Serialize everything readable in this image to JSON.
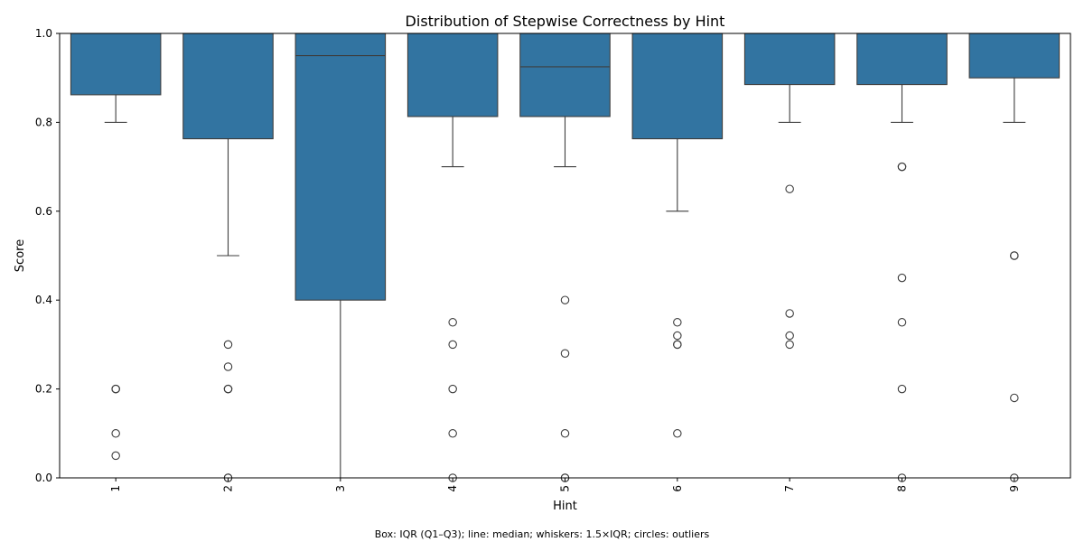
{
  "chart_data": {
    "type": "box",
    "title": "Distribution of Stepwise Correctness by Hint",
    "xlabel": "Hint",
    "ylabel": "Score",
    "ylim": [
      0,
      1.0
    ],
    "yticks": [
      "0.0",
      "0.2",
      "0.4",
      "0.6",
      "0.8",
      "1.0"
    ],
    "categories": [
      "1",
      "2",
      "3",
      "4",
      "5",
      "6",
      "7",
      "8",
      "9"
    ],
    "box_color": "#3274a1",
    "edge_color": "#3d3d3d",
    "grid": false,
    "boxes": [
      {
        "category": "1",
        "whisker_low": 0.8,
        "q1": 0.862,
        "median": 1.0,
        "q3": 1.0,
        "whisker_high": 1.0,
        "outliers": [
          0.2,
          0.2,
          0.1,
          0.05
        ]
      },
      {
        "category": "2",
        "whisker_low": 0.5,
        "q1": 0.763,
        "median": 1.0,
        "q3": 1.0,
        "whisker_high": 1.0,
        "outliers": [
          0.3,
          0.25,
          0.2,
          0.2,
          0.0,
          0.0
        ]
      },
      {
        "category": "3",
        "whisker_low": 0.0,
        "q1": 0.4,
        "median": 0.95,
        "q3": 1.0,
        "whisker_high": 1.0,
        "outliers": []
      },
      {
        "category": "4",
        "whisker_low": 0.7,
        "q1": 0.813,
        "median": 1.0,
        "q3": 1.0,
        "whisker_high": 1.0,
        "outliers": [
          0.35,
          0.3,
          0.2,
          0.1,
          0.0
        ]
      },
      {
        "category": "5",
        "whisker_low": 0.7,
        "q1": 0.813,
        "median": 0.925,
        "q3": 1.0,
        "whisker_high": 1.0,
        "outliers": [
          0.4,
          0.28,
          0.1,
          0.0,
          0.0
        ]
      },
      {
        "category": "6",
        "whisker_low": 0.6,
        "q1": 0.763,
        "median": 1.0,
        "q3": 1.0,
        "whisker_high": 1.0,
        "outliers": [
          0.35,
          0.32,
          0.3,
          0.3,
          0.1
        ]
      },
      {
        "category": "7",
        "whisker_low": 0.8,
        "q1": 0.885,
        "median": 1.0,
        "q3": 1.0,
        "whisker_high": 1.0,
        "outliers": [
          0.65,
          0.37,
          0.32,
          0.3
        ]
      },
      {
        "category": "8",
        "whisker_low": 0.8,
        "q1": 0.885,
        "median": 1.0,
        "q3": 1.0,
        "whisker_high": 1.0,
        "outliers": [
          0.7,
          0.7,
          0.45,
          0.35,
          0.2,
          0.0
        ]
      },
      {
        "category": "9",
        "whisker_low": 0.8,
        "q1": 0.9,
        "median": 1.0,
        "q3": 1.0,
        "whisker_high": 1.0,
        "outliers": [
          0.5,
          0.5,
          0.18,
          0.0
        ]
      }
    ],
    "caption": "Box: IQR (Q1–Q3); line: median; whiskers: 1.5×IQR; circles: outliers"
  }
}
